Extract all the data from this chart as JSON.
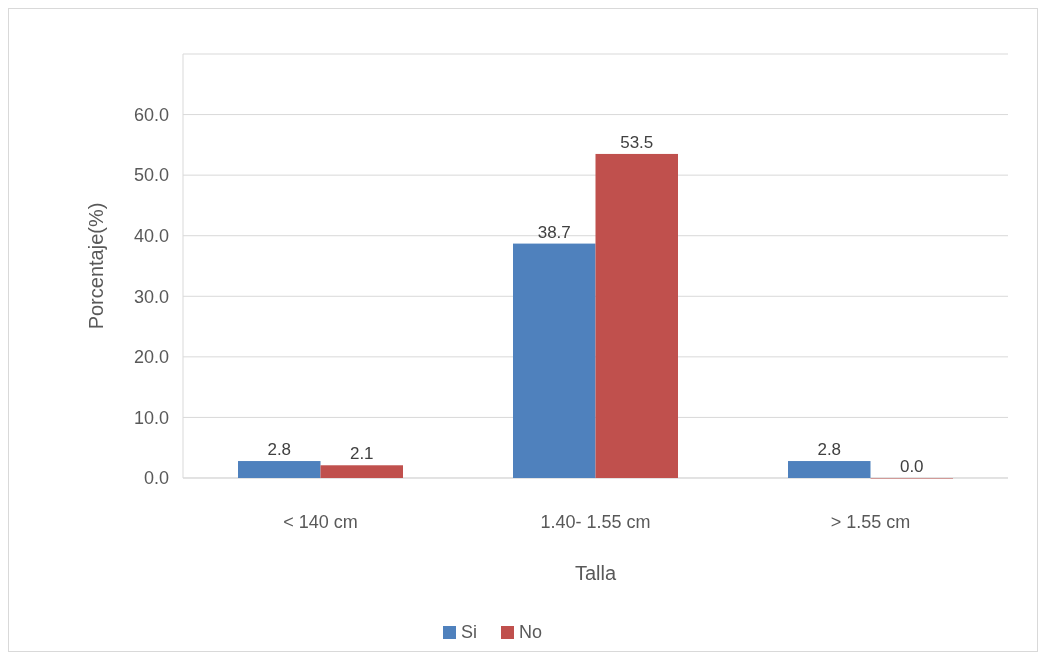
{
  "chart_data": {
    "type": "bar",
    "xlabel": "Talla",
    "ylabel": "Porcentaje(%)",
    "categories": [
      "< 140 cm",
      "1.40- 1.55 cm",
      "> 1.55 cm"
    ],
    "series": [
      {
        "name": "Si",
        "color": "#4f81bd",
        "values": [
          2.8,
          38.7,
          2.8
        ],
        "value_labels": [
          "2.8",
          "38.7",
          "2.8"
        ]
      },
      {
        "name": "No",
        "color": "#c0504d",
        "values": [
          2.1,
          53.5,
          0.0
        ],
        "value_labels": [
          "2.1",
          "53.5",
          "0.0"
        ]
      }
    ],
    "ylim": [
      0,
      70
    ],
    "yticks": [
      {
        "value": 0,
        "label": "0.0"
      },
      {
        "value": 10,
        "label": "10.0"
      },
      {
        "value": 20,
        "label": "20.0"
      },
      {
        "value": 30,
        "label": "30.0"
      },
      {
        "value": 40,
        "label": "40.0"
      },
      {
        "value": 50,
        "label": "50.0"
      },
      {
        "value": 60,
        "label": "60.0"
      },
      {
        "value": 70,
        "label": null
      }
    ],
    "grid": "y",
    "legend": "bottom"
  }
}
